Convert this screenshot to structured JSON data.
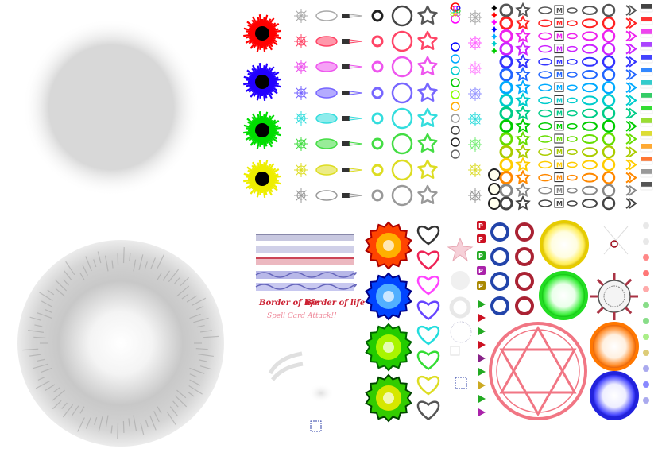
{
  "sheet": {
    "palette": [
      "#ff0000",
      "#ff44ff",
      "#2200ff",
      "#5566ff",
      "#00cccc",
      "#00ee00",
      "#55ff55",
      "#eeee00",
      "#999999"
    ],
    "small_palette": [
      "#ff0000",
      "#ff00ff",
      "#0000ff",
      "#00aaff",
      "#00cccc",
      "#00cc00",
      "#88ff00",
      "#ffaa00",
      "#999999",
      "#666666"
    ],
    "burst_colors": [
      "#ff0000",
      "#2200ff",
      "#00dd00",
      "#eeee00"
    ],
    "card_glyph": "M",
    "icon_glyph": "P",
    "banner_text_1": "Border of life",
    "banner_text_2": "Border of life",
    "banner_text_3": "Spell Card Attack!!"
  }
}
